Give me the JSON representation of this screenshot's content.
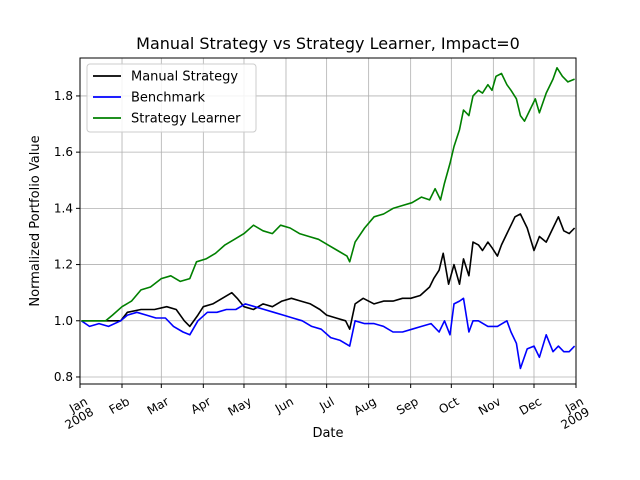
{
  "chart_data": {
    "type": "line",
    "title": "Manual Strategy vs Strategy Learner, Impact=0",
    "xlabel": "Date",
    "ylabel": "Normalized Portfolio Value",
    "grid": true,
    "legend_position": "upper-left",
    "xlim": [
      "2008-01-01",
      "2009-01-01"
    ],
    "ylim": [
      0.775,
      1.935
    ],
    "x_ticks": [
      {
        "date": "2008-01-01",
        "label": "Jan\n2008"
      },
      {
        "date": "2008-02-01",
        "label": "Feb"
      },
      {
        "date": "2008-03-01",
        "label": "Mar"
      },
      {
        "date": "2008-04-01",
        "label": "Apr"
      },
      {
        "date": "2008-05-01",
        "label": "May"
      },
      {
        "date": "2008-06-01",
        "label": "Jun"
      },
      {
        "date": "2008-07-01",
        "label": "Jul"
      },
      {
        "date": "2008-08-01",
        "label": "Aug"
      },
      {
        "date": "2008-09-01",
        "label": "Sep"
      },
      {
        "date": "2008-10-01",
        "label": "Oct"
      },
      {
        "date": "2008-11-01",
        "label": "Nov"
      },
      {
        "date": "2008-12-01",
        "label": "Dec"
      },
      {
        "date": "2009-01-01",
        "label": "Jan\n2009"
      }
    ],
    "y_ticks": [
      {
        "value": 0.8,
        "label": "0.8"
      },
      {
        "value": 1.0,
        "label": "1.0"
      },
      {
        "value": 1.2,
        "label": "1.2"
      },
      {
        "value": 1.4,
        "label": "1.4"
      },
      {
        "value": 1.6,
        "label": "1.6"
      },
      {
        "value": 1.8,
        "label": "1.8"
      }
    ],
    "series": [
      {
        "name": "Manual Strategy",
        "color": "#000000",
        "points": [
          [
            "2008-01-02",
            1.0
          ],
          [
            "2008-01-10",
            1.0
          ],
          [
            "2008-01-20",
            1.0
          ],
          [
            "2008-01-31",
            1.0
          ],
          [
            "2008-02-05",
            1.03
          ],
          [
            "2008-02-15",
            1.04
          ],
          [
            "2008-02-25",
            1.04
          ],
          [
            "2008-03-05",
            1.05
          ],
          [
            "2008-03-12",
            1.04
          ],
          [
            "2008-03-18",
            1.0
          ],
          [
            "2008-03-22",
            0.98
          ],
          [
            "2008-03-28",
            1.02
          ],
          [
            "2008-04-01",
            1.05
          ],
          [
            "2008-04-08",
            1.06
          ],
          [
            "2008-04-15",
            1.08
          ],
          [
            "2008-04-22",
            1.1
          ],
          [
            "2008-04-26",
            1.08
          ],
          [
            "2008-05-01",
            1.05
          ],
          [
            "2008-05-08",
            1.04
          ],
          [
            "2008-05-15",
            1.06
          ],
          [
            "2008-05-22",
            1.05
          ],
          [
            "2008-05-29",
            1.07
          ],
          [
            "2008-06-05",
            1.08
          ],
          [
            "2008-06-12",
            1.07
          ],
          [
            "2008-06-19",
            1.06
          ],
          [
            "2008-06-26",
            1.04
          ],
          [
            "2008-07-01",
            1.02
          ],
          [
            "2008-07-08",
            1.01
          ],
          [
            "2008-07-15",
            1.0
          ],
          [
            "2008-07-18",
            0.97
          ],
          [
            "2008-07-22",
            1.06
          ],
          [
            "2008-07-28",
            1.08
          ],
          [
            "2008-08-05",
            1.06
          ],
          [
            "2008-08-12",
            1.07
          ],
          [
            "2008-08-19",
            1.07
          ],
          [
            "2008-08-26",
            1.08
          ],
          [
            "2008-09-01",
            1.08
          ],
          [
            "2008-09-08",
            1.09
          ],
          [
            "2008-09-15",
            1.12
          ],
          [
            "2008-09-18",
            1.15
          ],
          [
            "2008-09-22",
            1.18
          ],
          [
            "2008-09-25",
            1.24
          ],
          [
            "2008-09-29",
            1.13
          ],
          [
            "2008-10-03",
            1.2
          ],
          [
            "2008-10-07",
            1.13
          ],
          [
            "2008-10-10",
            1.22
          ],
          [
            "2008-10-14",
            1.16
          ],
          [
            "2008-10-17",
            1.28
          ],
          [
            "2008-10-21",
            1.27
          ],
          [
            "2008-10-24",
            1.25
          ],
          [
            "2008-10-28",
            1.28
          ],
          [
            "2008-10-31",
            1.26
          ],
          [
            "2008-11-04",
            1.23
          ],
          [
            "2008-11-07",
            1.27
          ],
          [
            "2008-11-11",
            1.31
          ],
          [
            "2008-11-14",
            1.34
          ],
          [
            "2008-11-17",
            1.37
          ],
          [
            "2008-11-21",
            1.38
          ],
          [
            "2008-11-26",
            1.33
          ],
          [
            "2008-12-01",
            1.25
          ],
          [
            "2008-12-05",
            1.3
          ],
          [
            "2008-12-10",
            1.28
          ],
          [
            "2008-12-15",
            1.33
          ],
          [
            "2008-12-19",
            1.37
          ],
          [
            "2008-12-23",
            1.32
          ],
          [
            "2008-12-27",
            1.31
          ],
          [
            "2008-12-31",
            1.33
          ]
        ]
      },
      {
        "name": "Benchmark",
        "color": "#0000ff",
        "points": [
          [
            "2008-01-02",
            1.0
          ],
          [
            "2008-01-08",
            0.98
          ],
          [
            "2008-01-15",
            0.99
          ],
          [
            "2008-01-22",
            0.98
          ],
          [
            "2008-01-31",
            1.0
          ],
          [
            "2008-02-05",
            1.02
          ],
          [
            "2008-02-12",
            1.03
          ],
          [
            "2008-02-19",
            1.02
          ],
          [
            "2008-02-26",
            1.01
          ],
          [
            "2008-03-04",
            1.01
          ],
          [
            "2008-03-10",
            0.98
          ],
          [
            "2008-03-17",
            0.96
          ],
          [
            "2008-03-22",
            0.95
          ],
          [
            "2008-03-28",
            1.0
          ],
          [
            "2008-04-04",
            1.03
          ],
          [
            "2008-04-11",
            1.03
          ],
          [
            "2008-04-18",
            1.04
          ],
          [
            "2008-04-25",
            1.04
          ],
          [
            "2008-05-02",
            1.06
          ],
          [
            "2008-05-09",
            1.05
          ],
          [
            "2008-05-16",
            1.04
          ],
          [
            "2008-05-23",
            1.03
          ],
          [
            "2008-05-30",
            1.02
          ],
          [
            "2008-06-06",
            1.01
          ],
          [
            "2008-06-13",
            1.0
          ],
          [
            "2008-06-20",
            0.98
          ],
          [
            "2008-06-27",
            0.97
          ],
          [
            "2008-07-04",
            0.94
          ],
          [
            "2008-07-11",
            0.93
          ],
          [
            "2008-07-18",
            0.91
          ],
          [
            "2008-07-22",
            1.0
          ],
          [
            "2008-07-29",
            0.99
          ],
          [
            "2008-08-05",
            0.99
          ],
          [
            "2008-08-12",
            0.98
          ],
          [
            "2008-08-19",
            0.96
          ],
          [
            "2008-08-26",
            0.96
          ],
          [
            "2008-09-02",
            0.97
          ],
          [
            "2008-09-09",
            0.98
          ],
          [
            "2008-09-16",
            0.99
          ],
          [
            "2008-09-22",
            0.96
          ],
          [
            "2008-09-26",
            1.0
          ],
          [
            "2008-09-30",
            0.95
          ],
          [
            "2008-10-03",
            1.06
          ],
          [
            "2008-10-07",
            1.07
          ],
          [
            "2008-10-10",
            1.08
          ],
          [
            "2008-10-14",
            0.96
          ],
          [
            "2008-10-17",
            1.0
          ],
          [
            "2008-10-21",
            1.0
          ],
          [
            "2008-10-28",
            0.98
          ],
          [
            "2008-11-04",
            0.98
          ],
          [
            "2008-11-11",
            1.0
          ],
          [
            "2008-11-14",
            0.96
          ],
          [
            "2008-11-18",
            0.92
          ],
          [
            "2008-11-21",
            0.83
          ],
          [
            "2008-11-26",
            0.9
          ],
          [
            "2008-12-01",
            0.91
          ],
          [
            "2008-12-05",
            0.87
          ],
          [
            "2008-12-10",
            0.95
          ],
          [
            "2008-12-15",
            0.89
          ],
          [
            "2008-12-19",
            0.91
          ],
          [
            "2008-12-23",
            0.89
          ],
          [
            "2008-12-27",
            0.89
          ],
          [
            "2008-12-31",
            0.91
          ]
        ]
      },
      {
        "name": "Strategy Learner",
        "color": "#008000",
        "points": [
          [
            "2008-01-02",
            1.0
          ],
          [
            "2008-01-10",
            1.0
          ],
          [
            "2008-01-20",
            1.0
          ],
          [
            "2008-01-25",
            1.02
          ],
          [
            "2008-02-01",
            1.05
          ],
          [
            "2008-02-08",
            1.07
          ],
          [
            "2008-02-15",
            1.11
          ],
          [
            "2008-02-22",
            1.12
          ],
          [
            "2008-03-01",
            1.15
          ],
          [
            "2008-03-08",
            1.16
          ],
          [
            "2008-03-15",
            1.14
          ],
          [
            "2008-03-22",
            1.15
          ],
          [
            "2008-03-27",
            1.21
          ],
          [
            "2008-04-03",
            1.22
          ],
          [
            "2008-04-10",
            1.24
          ],
          [
            "2008-04-17",
            1.27
          ],
          [
            "2008-04-24",
            1.29
          ],
          [
            "2008-05-01",
            1.31
          ],
          [
            "2008-05-08",
            1.34
          ],
          [
            "2008-05-15",
            1.32
          ],
          [
            "2008-05-22",
            1.31
          ],
          [
            "2008-05-28",
            1.34
          ],
          [
            "2008-06-04",
            1.33
          ],
          [
            "2008-06-11",
            1.31
          ],
          [
            "2008-06-18",
            1.3
          ],
          [
            "2008-06-25",
            1.29
          ],
          [
            "2008-07-02",
            1.27
          ],
          [
            "2008-07-09",
            1.25
          ],
          [
            "2008-07-16",
            1.23
          ],
          [
            "2008-07-18",
            1.21
          ],
          [
            "2008-07-22",
            1.28
          ],
          [
            "2008-07-29",
            1.33
          ],
          [
            "2008-08-05",
            1.37
          ],
          [
            "2008-08-12",
            1.38
          ],
          [
            "2008-08-19",
            1.4
          ],
          [
            "2008-08-26",
            1.41
          ],
          [
            "2008-09-02",
            1.42
          ],
          [
            "2008-09-09",
            1.44
          ],
          [
            "2008-09-15",
            1.43
          ],
          [
            "2008-09-19",
            1.47
          ],
          [
            "2008-09-23",
            1.43
          ],
          [
            "2008-09-26",
            1.49
          ],
          [
            "2008-09-30",
            1.56
          ],
          [
            "2008-10-03",
            1.62
          ],
          [
            "2008-10-07",
            1.68
          ],
          [
            "2008-10-10",
            1.75
          ],
          [
            "2008-10-14",
            1.73
          ],
          [
            "2008-10-17",
            1.8
          ],
          [
            "2008-10-21",
            1.82
          ],
          [
            "2008-10-24",
            1.81
          ],
          [
            "2008-10-28",
            1.84
          ],
          [
            "2008-10-31",
            1.82
          ],
          [
            "2008-11-03",
            1.87
          ],
          [
            "2008-11-07",
            1.88
          ],
          [
            "2008-11-11",
            1.84
          ],
          [
            "2008-11-14",
            1.82
          ],
          [
            "2008-11-18",
            1.79
          ],
          [
            "2008-11-21",
            1.73
          ],
          [
            "2008-11-24",
            1.71
          ],
          [
            "2008-11-28",
            1.75
          ],
          [
            "2008-12-02",
            1.79
          ],
          [
            "2008-12-05",
            1.74
          ],
          [
            "2008-12-10",
            1.81
          ],
          [
            "2008-12-15",
            1.86
          ],
          [
            "2008-12-18",
            1.9
          ],
          [
            "2008-12-22",
            1.87
          ],
          [
            "2008-12-26",
            1.85
          ],
          [
            "2008-12-31",
            1.86
          ]
        ]
      }
    ]
  }
}
